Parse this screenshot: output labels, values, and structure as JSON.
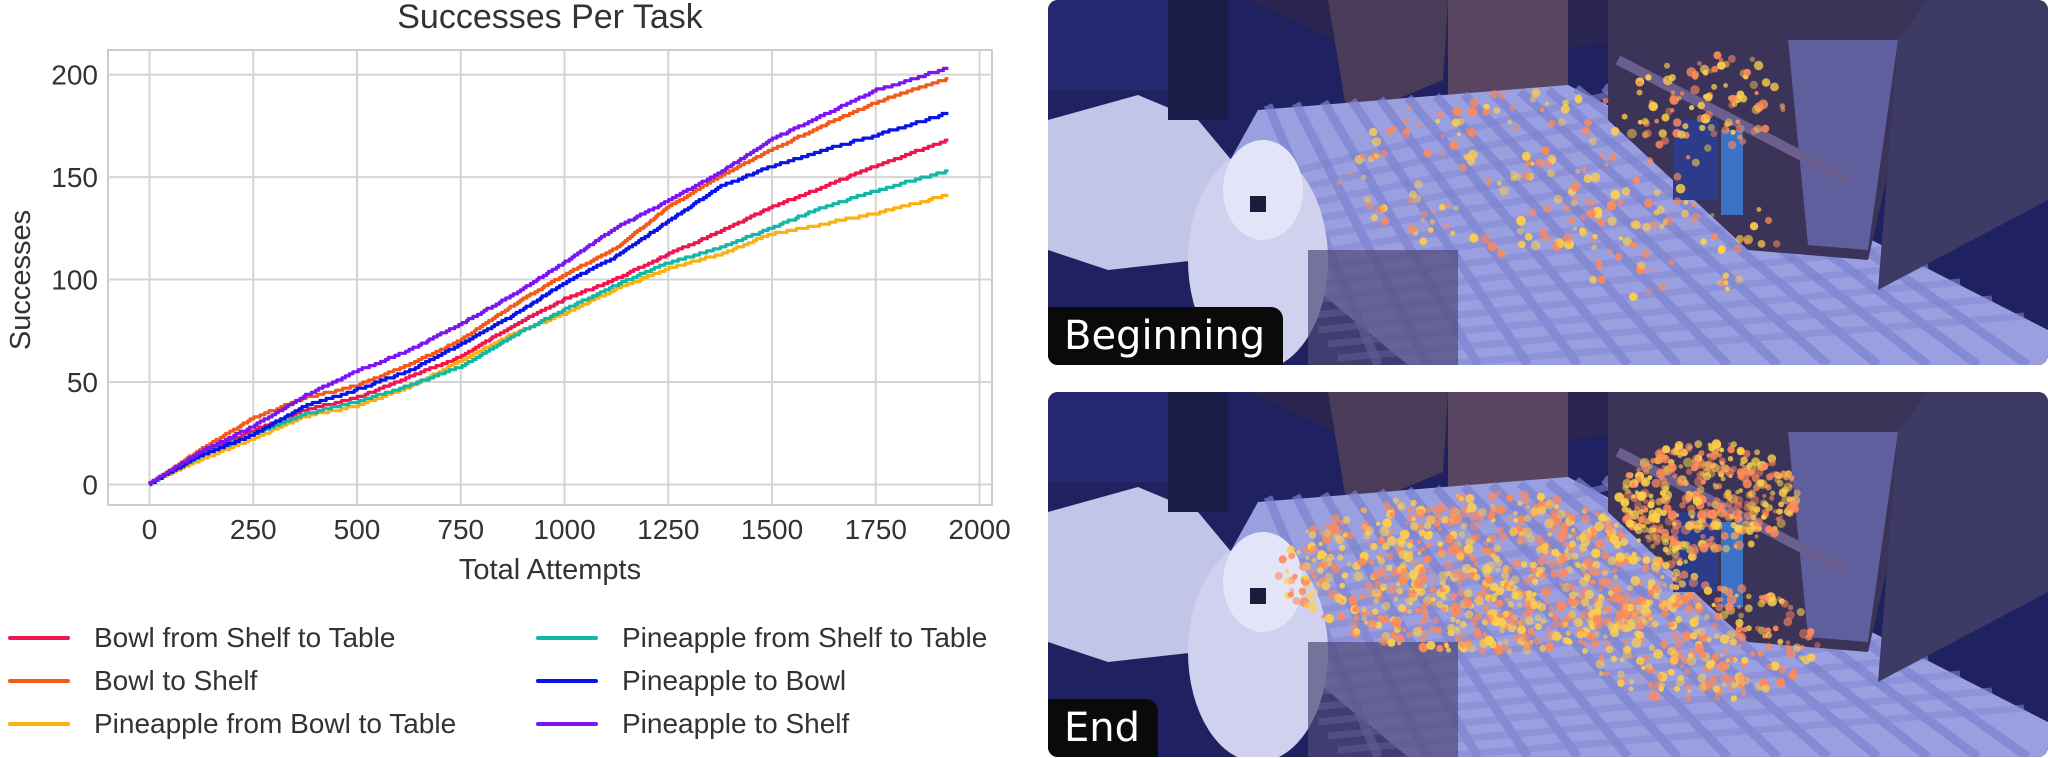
{
  "chart_data": {
    "type": "line",
    "title": "Successes Per Task",
    "xlabel": "Total Attempts",
    "ylabel": "Successes",
    "xlim": [
      -100,
      2030
    ],
    "ylim": [
      -10,
      212
    ],
    "xticks": [
      0,
      250,
      500,
      750,
      1000,
      1250,
      1500,
      1750,
      2000
    ],
    "yticks": [
      0,
      50,
      100,
      150,
      200
    ],
    "grid": true,
    "legend_position": "bottom",
    "x": [
      0,
      125,
      250,
      375,
      500,
      625,
      750,
      875,
      1000,
      1125,
      1250,
      1375,
      1500,
      1625,
      1750,
      1925
    ],
    "series": [
      {
        "name": "Bowl from Shelf to Table",
        "color": "#f0144f",
        "values": [
          0,
          15,
          26,
          36,
          42,
          52,
          62,
          77,
          90,
          100,
          112,
          123,
          135,
          145,
          155,
          168
        ]
      },
      {
        "name": "Bowl to Shelf",
        "color": "#f35a18",
        "values": [
          0,
          17,
          32,
          42,
          48,
          58,
          70,
          87,
          102,
          115,
          135,
          150,
          163,
          175,
          186,
          198
        ]
      },
      {
        "name": "Pineapple from Bowl to Table",
        "color": "#fbb013",
        "values": [
          0,
          12,
          22,
          33,
          38,
          47,
          60,
          73,
          83,
          95,
          105,
          112,
          122,
          127,
          132,
          141
        ]
      },
      {
        "name": "Pineapple from Shelf to Table",
        "color": "#13b8a4",
        "values": [
          0,
          14,
          24,
          34,
          40,
          48,
          57,
          72,
          85,
          97,
          108,
          115,
          125,
          135,
          143,
          153
        ]
      },
      {
        "name": "Pineapple to Bowl",
        "color": "#0a14e8",
        "values": [
          0,
          14,
          24,
          38,
          46,
          55,
          68,
          82,
          98,
          111,
          128,
          145,
          155,
          163,
          170,
          181
        ]
      },
      {
        "name": "Pineapple to Shelf",
        "color": "#7b15f2",
        "values": [
          0,
          16,
          28,
          43,
          55,
          65,
          78,
          92,
          108,
          125,
          138,
          152,
          168,
          180,
          192,
          203
        ]
      }
    ]
  },
  "panels": {
    "top_caption": "Beginning",
    "bottom_caption": "End"
  }
}
